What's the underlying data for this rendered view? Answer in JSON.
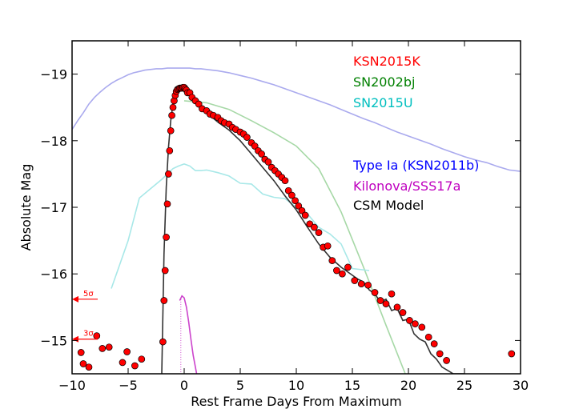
{
  "chart_data": {
    "type": "scatter",
    "xlabel": "Rest Frame Days From Maximum",
    "ylabel": "Absolute Mag",
    "xlim": [
      -10,
      30
    ],
    "ylim": [
      -14.5,
      -19.5
    ],
    "y_inverted": true,
    "x_ticks": [
      -10,
      -5,
      0,
      5,
      10,
      15,
      20,
      25,
      30
    ],
    "x_tick_labels": [
      "−10",
      "−5",
      "0",
      "5",
      "10",
      "15",
      "20",
      "25",
      "30"
    ],
    "y_ticks": [
      -15,
      -16,
      -17,
      -18,
      -19
    ],
    "y_tick_labels": [
      "−15",
      "−16",
      "−17",
      "−18",
      "−19"
    ],
    "legend_placement": "top-right",
    "legend": [
      {
        "label": "KSN2015K",
        "color": "#ff0000"
      },
      {
        "label": "SN2002bj",
        "color": "#008000"
      },
      {
        "label": "SN2015U",
        "color": "#00bfbf"
      },
      {
        "label": "Type Ia (KSN2011b)",
        "color": "#0000ff"
      },
      {
        "label": "Kilonova/SSS17a",
        "color": "#bf00bf"
      },
      {
        "label": "CSM Model",
        "color": "#000000"
      }
    ],
    "upper_limit_labels": [
      {
        "label": "5σ",
        "mag": -15.62
      },
      {
        "label": "3σ",
        "mag": -15.02
      }
    ],
    "series": [
      {
        "name": "Type Ia (KSN2011b)",
        "kind": "line",
        "color": "#aaaaee",
        "x": [
          -10,
          -9.5,
          -9,
          -8.5,
          -8,
          -7.5,
          -7,
          -6.5,
          -6,
          -5.5,
          -5,
          -4.5,
          -4,
          -3.5,
          -3,
          -2.5,
          -2,
          -1.5,
          -1,
          -0.5,
          0,
          0.5,
          1,
          1.5,
          2,
          3,
          4,
          5,
          6,
          7,
          8,
          9,
          10,
          11,
          12,
          13,
          14,
          15,
          16,
          17,
          18,
          19,
          20,
          21,
          22,
          23,
          24,
          25,
          26,
          27,
          28,
          29,
          30
        ],
        "y": [
          -18.17,
          -18.3,
          -18.42,
          -18.55,
          -18.65,
          -18.73,
          -18.8,
          -18.86,
          -18.91,
          -18.95,
          -18.99,
          -19.02,
          -19.04,
          -19.06,
          -19.07,
          -19.08,
          -19.08,
          -19.09,
          -19.09,
          -19.09,
          -19.09,
          -19.09,
          -19.08,
          -19.08,
          -19.07,
          -19.05,
          -19.02,
          -18.98,
          -18.94,
          -18.89,
          -18.84,
          -18.78,
          -18.72,
          -18.66,
          -18.6,
          -18.54,
          -18.47,
          -18.4,
          -18.33,
          -18.27,
          -18.2,
          -18.13,
          -18.07,
          -18.01,
          -17.95,
          -17.88,
          -17.82,
          -17.76,
          -17.71,
          -17.67,
          -17.61,
          -17.56,
          -17.54
        ]
      },
      {
        "name": "SN2002bj",
        "kind": "line",
        "color": "#a6d8a6",
        "x": [
          0,
          2,
          4,
          6,
          8,
          10,
          12,
          14,
          16,
          18,
          20
        ],
        "y": [
          -18.6,
          -18.57,
          -18.47,
          -18.3,
          -18.12,
          -17.92,
          -17.58,
          -16.93,
          -16.1,
          -15.23,
          -14.38
        ]
      },
      {
        "name": "SN2015U",
        "kind": "line",
        "color": "#a8e8e8",
        "x": [
          -6.5,
          -5,
          -4,
          -3,
          -2,
          -1,
          -0.5,
          0,
          0.5,
          1,
          1.5,
          2,
          3,
          4,
          5,
          6,
          7,
          8,
          9,
          10,
          11,
          12,
          13,
          14,
          15,
          16.5
        ],
        "y": [
          -15.78,
          -16.5,
          -17.14,
          -17.28,
          -17.42,
          -17.58,
          -17.62,
          -17.65,
          -17.62,
          -17.55,
          -17.55,
          -17.56,
          -17.52,
          -17.47,
          -17.36,
          -17.35,
          -17.2,
          -17.15,
          -17.13,
          -17.0,
          -16.9,
          -16.7,
          -16.6,
          -16.45,
          -16.08,
          -16.05
        ]
      },
      {
        "name": "Kilonova/SSS17a",
        "kind": "line",
        "color": "#cc44cc",
        "x": [
          -0.4,
          -0.2,
          0,
          0.2,
          0.4,
          0.6,
          0.8,
          1.0,
          1.2
        ],
        "y": [
          -15.6,
          -15.67,
          -15.64,
          -15.5,
          -15.28,
          -15.02,
          -14.78,
          -14.6,
          -14.42
        ]
      },
      {
        "name": "CSM Model",
        "kind": "line",
        "color": "#333333",
        "x": [
          -2,
          -1.8,
          -1.6,
          -1.4,
          -1.2,
          -1.0,
          -0.8,
          -0.6,
          -0.4,
          -0.2,
          0,
          0.3,
          0.6,
          1,
          1.5,
          2,
          3,
          4,
          5,
          6,
          7,
          8,
          9,
          10,
          11,
          12,
          13,
          14,
          14.5,
          15,
          15.5,
          16,
          16.5,
          17,
          17.5,
          18,
          18.5,
          19,
          19.5,
          20,
          20.5,
          21,
          21.5,
          22,
          22.5,
          23,
          23.5,
          24,
          24.5,
          25
        ],
        "y": [
          -14.5,
          -16.3,
          -17.3,
          -17.9,
          -18.3,
          -18.55,
          -18.68,
          -18.73,
          -18.76,
          -18.77,
          -18.77,
          -18.74,
          -18.69,
          -18.6,
          -18.5,
          -18.42,
          -18.28,
          -18.16,
          -18.0,
          -17.8,
          -17.6,
          -17.4,
          -17.17,
          -16.96,
          -16.7,
          -16.45,
          -16.25,
          -16.1,
          -16.04,
          -15.98,
          -15.92,
          -15.88,
          -15.76,
          -15.7,
          -15.58,
          -15.62,
          -15.45,
          -15.48,
          -15.3,
          -15.32,
          -15.1,
          -15.02,
          -14.98,
          -14.8,
          -14.72,
          -14.6,
          -14.55,
          -14.5,
          -14.5,
          -14.5
        ]
      },
      {
        "name": "KSN2015K",
        "kind": "points",
        "color": "#ff0000",
        "x": [
          -9.2,
          -9,
          -8.5,
          -7.8,
          -7.3,
          -6.7,
          -5.5,
          -5.1,
          -4.4,
          -3.8,
          -1.9,
          -1.8,
          -1.7,
          -1.6,
          -1.5,
          -1.4,
          -1.3,
          -1.2,
          -1.1,
          -1.0,
          -0.9,
          -0.8,
          -0.7,
          -0.6,
          -0.5,
          -0.4,
          -0.3,
          -0.2,
          -0.1,
          0,
          0.1,
          0.2,
          0.3,
          0.5,
          0.7,
          1.0,
          1.3,
          1.6,
          2.0,
          2.3,
          2.6,
          3.0,
          3.3,
          3.6,
          4.0,
          4.3,
          4.6,
          5.0,
          5.3,
          5.6,
          6.0,
          6.3,
          6.6,
          6.9,
          7.2,
          7.5,
          7.8,
          8.1,
          8.4,
          8.7,
          9.0,
          9.3,
          9.6,
          9.9,
          10.2,
          10.5,
          10.8,
          11.2,
          11.6,
          12.0,
          12.4,
          12.8,
          13.2,
          13.6,
          14.1,
          14.6,
          15.2,
          15.8,
          16.4,
          17.0,
          17.5,
          18.0,
          18.5,
          19.0,
          19.5,
          20.1,
          20.6,
          21.2,
          21.8,
          22.3,
          22.8,
          23.4,
          29.2
        ],
        "y": [
          -14.82,
          -14.65,
          -14.6,
          -15.07,
          -14.88,
          -14.9,
          -14.67,
          -14.83,
          -14.62,
          -14.72,
          -14.98,
          -15.6,
          -16.05,
          -16.55,
          -17.05,
          -17.5,
          -17.85,
          -18.15,
          -18.38,
          -18.5,
          -18.6,
          -18.68,
          -18.74,
          -18.77,
          -18.78,
          -18.79,
          -18.79,
          -18.79,
          -18.8,
          -18.8,
          -18.78,
          -18.76,
          -18.72,
          -18.72,
          -18.65,
          -18.6,
          -18.55,
          -18.48,
          -18.45,
          -18.4,
          -18.38,
          -18.35,
          -18.3,
          -18.27,
          -18.25,
          -18.2,
          -18.17,
          -18.13,
          -18.1,
          -18.05,
          -17.97,
          -17.92,
          -17.85,
          -17.8,
          -17.72,
          -17.68,
          -17.6,
          -17.55,
          -17.5,
          -17.45,
          -17.4,
          -17.25,
          -17.18,
          -17.1,
          -17.02,
          -16.95,
          -16.88,
          -16.75,
          -16.7,
          -16.62,
          -16.4,
          -16.42,
          -16.2,
          -16.05,
          -16.0,
          -16.1,
          -15.9,
          -15.85,
          -15.83,
          -15.72,
          -15.6,
          -15.55,
          -15.7,
          -15.5,
          -15.42,
          -15.3,
          -15.25,
          -15.2,
          -15.05,
          -14.95,
          -14.8,
          -14.7,
          -14.8
        ]
      }
    ]
  }
}
